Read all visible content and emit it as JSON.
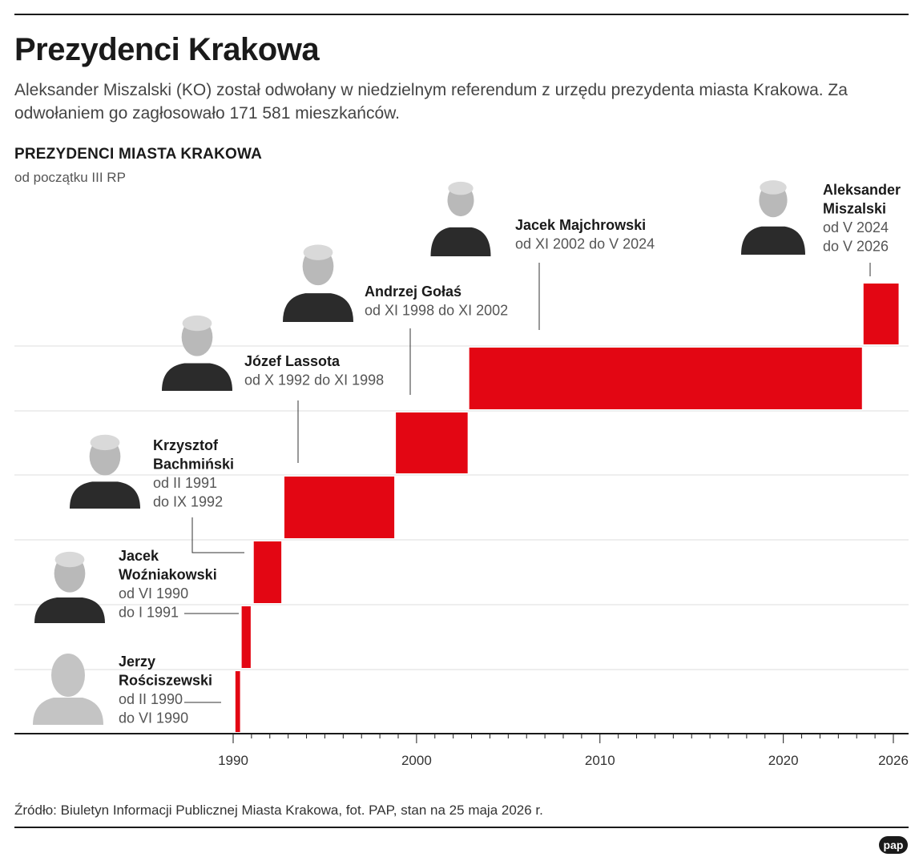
{
  "header": {
    "title": "Prezydenci Krakowa",
    "subtitle": "Aleksander Miszalski (KO) został odwołany w niedzielnym referendum z urzędu prezydenta miasta Krakowa. Za odwołaniem go zagłosowało 171 581 mieszkańców."
  },
  "chart_data": {
    "type": "bar",
    "title": "PREZYDENCI MIASTA KRAKOWA",
    "subtitle": "od początku III RP",
    "xlim": [
      1990,
      2026
    ],
    "x_major_ticks": [
      "1990",
      "2000",
      "2010",
      "2020",
      "2026"
    ],
    "bar_color": "#e30613",
    "series": [
      {
        "name": "Jerzy Rościszewski",
        "name_lines": [
          "Jerzy",
          "Rościszewski"
        ],
        "term_lines": [
          "od II 1990",
          "do VI 1990"
        ],
        "start": 1990.08,
        "end": 1990.42
      },
      {
        "name": "Jacek Woźniakowski",
        "name_lines": [
          "Jacek",
          "Woźniakowski"
        ],
        "term_lines": [
          "od VI 1990",
          "do I 1991"
        ],
        "start": 1990.42,
        "end": 1991.0
      },
      {
        "name": "Krzysztof Bachmiński",
        "name_lines": [
          "Krzysztof",
          "Bachmiński"
        ],
        "term_lines": [
          "od II 1991",
          "do IX 1992"
        ],
        "start": 1991.08,
        "end": 1992.67
      },
      {
        "name": "Józef Lassota",
        "name_lines": [
          "Józef Lassota"
        ],
        "term_lines": [
          "od X 1992 do XI 1998"
        ],
        "start": 1992.75,
        "end": 1998.83
      },
      {
        "name": "Andrzej Gołaś",
        "name_lines": [
          "Andrzej Gołaś"
        ],
        "term_lines": [
          "od XI 1998 do XI 2002"
        ],
        "start": 1998.83,
        "end": 2002.83
      },
      {
        "name": "Jacek Majchrowski",
        "name_lines": [
          "Jacek Majchrowski"
        ],
        "term_lines": [
          "od XI 2002 do V 2024"
        ],
        "start": 2002.83,
        "end": 2024.33
      },
      {
        "name": "Aleksander Miszalski",
        "name_lines": [
          "Aleksander",
          "Miszalski"
        ],
        "term_lines": [
          "od V 2024",
          "do V 2026"
        ],
        "start": 2024.33,
        "end": 2026.33
      }
    ]
  },
  "footer": {
    "source": "Źródło: Biuletyn Informacji Publicznej Miasta Krakowa, fot. PAP, stan na 25 maja 2026 r.",
    "logo": "pap"
  }
}
